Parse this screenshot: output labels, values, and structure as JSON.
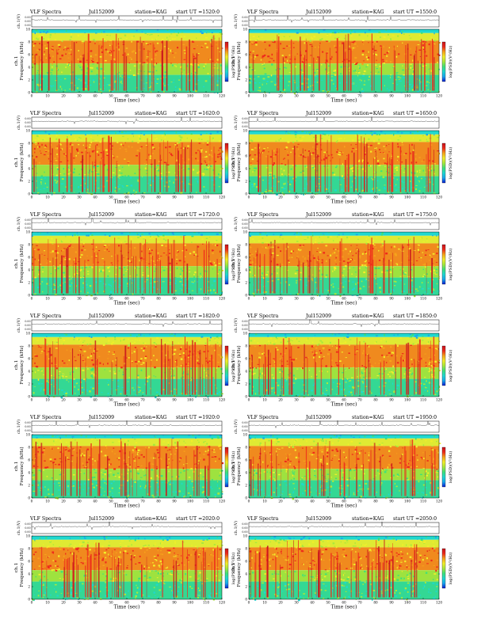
{
  "colors": {
    "colorbar_stops": [
      "#0a1fd1",
      "#1aa7ee",
      "#1fd8d0",
      "#3ee07a",
      "#a8e83c",
      "#f2ee2a",
      "#f6a31c",
      "#ee2b1c",
      "#c8141e"
    ],
    "trace": "#333333"
  },
  "chart_data": [
    {
      "type": "heatmap",
      "title_left": "VLF Spectra",
      "date": "Jul152009",
      "station": "station=KAG",
      "start": "start UT =1520:0",
      "trace_label": "ch.1(V)",
      "trace_ticks": [
        "0.00",
        "0.00",
        "0.00"
      ],
      "ylabel_left": "ch.1",
      "ylabel": "Frequency (kHz)",
      "colorbar_label": "log(PSD)(V²/Hz)",
      "colorbar_ticks": [
        "",
        "",
        ""
      ],
      "xlabel": "Time (sec)",
      "xticks": [
        "0",
        "10",
        "20",
        "30",
        "40",
        "50",
        "60",
        "70",
        "80",
        "90",
        "100",
        "110",
        "120"
      ],
      "yticks": [
        "0",
        "2",
        "4",
        "6",
        "8",
        "10"
      ],
      "xlim": [
        0,
        120
      ],
      "ylim": [
        0,
        10
      ]
    },
    {
      "type": "heatmap",
      "title_left": "VLF Spectra",
      "date": "Jul152009",
      "station": "station=KAG",
      "start": "start UT =1550:0",
      "trace_label": "ch.1(V)",
      "trace_ticks": [
        "0.00",
        "0.00",
        "0.00"
      ],
      "ylabel_left": "ch.1",
      "ylabel": "Frequency (kHz)",
      "colorbar_label": "log(PSD)(V²/Hz)",
      "colorbar_ticks": [
        "",
        "",
        ""
      ],
      "xlabel": "Time (sec)",
      "xticks": [
        "0",
        "10",
        "20",
        "30",
        "40",
        "50",
        "60",
        "70",
        "80",
        "90",
        "100",
        "110",
        "120"
      ],
      "yticks": [
        "0",
        "2",
        "4",
        "6",
        "8",
        "10"
      ],
      "xlim": [
        0,
        120
      ],
      "ylim": [
        0,
        10
      ]
    },
    {
      "type": "heatmap",
      "title_left": "VLF Spectra",
      "date": "Jul152009",
      "station": "station=KAG",
      "start": "start UT =1620:0",
      "trace_label": "ch.1(V)",
      "trace_ticks": [
        "0.00",
        "0.00",
        "0.00"
      ],
      "ylabel_left": "ch.1",
      "ylabel": "Frequency (kHz)",
      "colorbar_label": "log(PSD)(V²/Hz)",
      "colorbar_ticks": [
        "",
        "",
        ""
      ],
      "xlabel": "Time (sec)",
      "xticks": [
        "0",
        "10",
        "20",
        "30",
        "40",
        "50",
        "60",
        "70",
        "80",
        "90",
        "100",
        "110",
        "120"
      ],
      "yticks": [
        "0",
        "2",
        "4",
        "6",
        "8",
        "10"
      ],
      "xlim": [
        0,
        120
      ],
      "ylim": [
        0,
        10
      ]
    },
    {
      "type": "heatmap",
      "title_left": "VLF Spectra",
      "date": "Jul152009",
      "station": "station=KAG",
      "start": "start UT =1650:0",
      "trace_label": "ch.1(V)",
      "trace_ticks": [
        "0.00",
        "0.00",
        "0.00"
      ],
      "ylabel_left": "ch.1",
      "ylabel": "Frequency (kHz)",
      "colorbar_label": "log(PSD)(V²/Hz)",
      "colorbar_ticks": [
        "",
        "",
        ""
      ],
      "xlabel": "Time (sec)",
      "xticks": [
        "0",
        "10",
        "20",
        "30",
        "40",
        "50",
        "60",
        "70",
        "80",
        "90",
        "100",
        "110",
        "120"
      ],
      "yticks": [
        "0",
        "2",
        "4",
        "6",
        "8",
        "10"
      ],
      "xlim": [
        0,
        120
      ],
      "ylim": [
        0,
        10
      ]
    },
    {
      "type": "heatmap",
      "title_left": "VLF Spectra",
      "date": "Jul152009",
      "station": "station=KAG",
      "start": "start UT =1720:0",
      "trace_label": "ch.1(V)",
      "trace_ticks": [
        "0.00",
        "0.00",
        "0.00"
      ],
      "ylabel_left": "ch.1",
      "ylabel": "Frequency (kHz)",
      "colorbar_label": "log(PSD)(V²/Hz)",
      "colorbar_ticks": [
        "",
        "",
        ""
      ],
      "xlabel": "Time (sec)",
      "xticks": [
        "0",
        "10",
        "20",
        "30",
        "40",
        "50",
        "60",
        "70",
        "80",
        "90",
        "100",
        "110",
        "120"
      ],
      "yticks": [
        "0",
        "2",
        "4",
        "6",
        "8",
        "10"
      ],
      "xlim": [
        0,
        120
      ],
      "ylim": [
        0,
        10
      ]
    },
    {
      "type": "heatmap",
      "title_left": "VLF Spectra",
      "date": "Jul152009",
      "station": "station=KAG",
      "start": "start UT =1750:0",
      "trace_label": "ch.1(V)",
      "trace_ticks": [
        "0.00",
        "0.00",
        "0.00"
      ],
      "ylabel_left": "ch.1",
      "ylabel": "Frequency (kHz)",
      "colorbar_label": "log(PSD)(V²/Hz)",
      "colorbar_ticks": [
        "",
        "",
        ""
      ],
      "xlabel": "Time (sec)",
      "xticks": [
        "0",
        "10",
        "20",
        "30",
        "40",
        "50",
        "60",
        "70",
        "80",
        "90",
        "100",
        "110",
        "120"
      ],
      "yticks": [
        "0",
        "2",
        "4",
        "6",
        "8",
        "10"
      ],
      "xlim": [
        0,
        120
      ],
      "ylim": [
        0,
        10
      ]
    },
    {
      "type": "heatmap",
      "title_left": "VLF Spectra",
      "date": "Jul152009",
      "station": "station=KAG",
      "start": "start UT =1820:0",
      "trace_label": "ch.1(V)",
      "trace_ticks": [
        "0.00",
        "0.00",
        "0.00"
      ],
      "ylabel_left": "ch.1",
      "ylabel": "Frequency (kHz)",
      "colorbar_label": "log(PSD)(V²/Hz)",
      "colorbar_ticks": [
        "",
        "",
        ""
      ],
      "xlabel": "Time (sec)",
      "xticks": [
        "0",
        "10",
        "20",
        "30",
        "40",
        "50",
        "60",
        "70",
        "80",
        "90",
        "100",
        "110",
        "120"
      ],
      "yticks": [
        "0",
        "2",
        "4",
        "6",
        "8",
        "10"
      ],
      "xlim": [
        0,
        120
      ],
      "ylim": [
        0,
        10
      ]
    },
    {
      "type": "heatmap",
      "title_left": "VLF Spectra",
      "date": "Jul152009",
      "station": "station=KAG",
      "start": "start UT =1850:0",
      "trace_label": "ch.1(V)",
      "trace_ticks": [
        "0.00",
        "0.00",
        "0.00"
      ],
      "ylabel_left": "ch.1",
      "ylabel": "Frequency (kHz)",
      "colorbar_label": "log(PSD)(V²/Hz)",
      "colorbar_ticks": [
        "",
        "",
        ""
      ],
      "xlabel": "Time (sec)",
      "xticks": [
        "0",
        "10",
        "20",
        "30",
        "40",
        "50",
        "60",
        "70",
        "80",
        "90",
        "100",
        "110",
        "120"
      ],
      "yticks": [
        "0",
        "2",
        "4",
        "6",
        "8",
        "10"
      ],
      "xlim": [
        0,
        120
      ],
      "ylim": [
        0,
        10
      ]
    },
    {
      "type": "heatmap",
      "title_left": "VLF Spectra",
      "date": "Jul152009",
      "station": "station=KAG",
      "start": "start UT =1920:0",
      "trace_label": "ch.1(V)",
      "trace_ticks": [
        "0.00",
        "0.00",
        "0.00"
      ],
      "ylabel_left": "ch.1",
      "ylabel": "Frequency (kHz)",
      "colorbar_label": "log(PSD)(V²/Hz)",
      "colorbar_ticks": [
        "",
        "",
        ""
      ],
      "xlabel": "Time (sec)",
      "xticks": [
        "0",
        "10",
        "20",
        "30",
        "40",
        "50",
        "60",
        "70",
        "80",
        "90",
        "100",
        "110",
        "120"
      ],
      "yticks": [
        "0",
        "2",
        "4",
        "6",
        "8",
        "10"
      ],
      "xlim": [
        0,
        120
      ],
      "ylim": [
        0,
        10
      ]
    },
    {
      "type": "heatmap",
      "title_left": "VLF Spectra",
      "date": "Jul152009",
      "station": "station=KAG",
      "start": "start UT =1950:0",
      "trace_label": "ch.1(V)",
      "trace_ticks": [
        "0.00",
        "0.00",
        "0.00"
      ],
      "ylabel_left": "ch.1",
      "ylabel": "Frequency (kHz)",
      "colorbar_label": "log(PSD)(V²/Hz)",
      "colorbar_ticks": [
        "",
        "",
        ""
      ],
      "xlabel": "Time (sec)",
      "xticks": [
        "0",
        "10",
        "20",
        "30",
        "40",
        "50",
        "60",
        "70",
        "80",
        "90",
        "100",
        "110",
        "120"
      ],
      "yticks": [
        "0",
        "2",
        "4",
        "6",
        "8",
        "10"
      ],
      "xlim": [
        0,
        120
      ],
      "ylim": [
        0,
        10
      ]
    },
    {
      "type": "heatmap",
      "title_left": "VLF Spectra",
      "date": "Jul152009",
      "station": "station=KAG",
      "start": "start UT =2020:0",
      "trace_label": "ch.1(V)",
      "trace_ticks": [
        "0.00",
        "0.00",
        "0.00"
      ],
      "ylabel_left": "ch.1",
      "ylabel": "Frequency (kHz)",
      "colorbar_label": "log(PSD)(V²/Hz)",
      "colorbar_ticks": [
        "",
        "",
        ""
      ],
      "xlabel": "Time (sec)",
      "xticks": [
        "0",
        "10",
        "20",
        "30",
        "40",
        "50",
        "60",
        "70",
        "80",
        "90",
        "100",
        "110",
        "120"
      ],
      "yticks": [
        "0",
        "2",
        "4",
        "6",
        "8",
        "10"
      ],
      "xlim": [
        0,
        120
      ],
      "ylim": [
        0,
        10
      ]
    },
    {
      "type": "heatmap",
      "title_left": "VLF Spectra",
      "date": "Jul152009",
      "station": "station=KAG",
      "start": "start UT =2050:0",
      "trace_label": "ch.1(V)",
      "trace_ticks": [
        "0.00",
        "0.00",
        "0.00"
      ],
      "ylabel_left": "ch.1",
      "ylabel": "Frequency (kHz)",
      "colorbar_label": "log(PSD)(V²/Hz)",
      "colorbar_ticks": [
        "",
        "",
        ""
      ],
      "xlabel": "Time (sec)",
      "xticks": [
        "0",
        "10",
        "20",
        "30",
        "40",
        "50",
        "60",
        "70",
        "80",
        "90",
        "100",
        "110",
        "120"
      ],
      "yticks": [
        "0",
        "2",
        "4",
        "6",
        "8",
        "10"
      ],
      "xlim": [
        0,
        120
      ],
      "ylim": [
        0,
        10
      ]
    }
  ]
}
